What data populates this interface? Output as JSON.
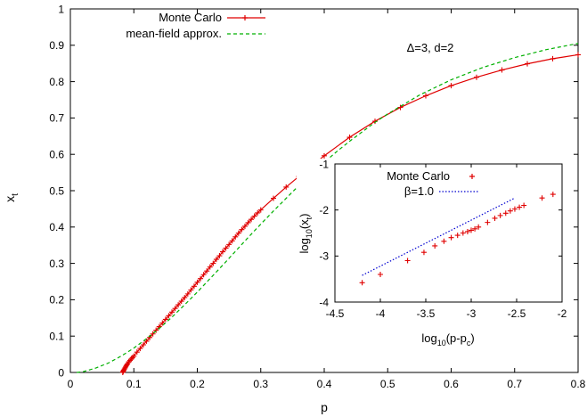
{
  "chart_data": [
    {
      "type": "line",
      "xlabel": "p",
      "ylabel": "x",
      "ylabel_sub": "t",
      "annotation": "Δ=3, d=2",
      "xlim": [
        0,
        0.8
      ],
      "ylim": [
        0,
        1
      ],
      "xticks": [
        "0",
        "0.1",
        "0.2",
        "0.3",
        "0.4",
        "0.5",
        "0.6",
        "0.7",
        "0.8"
      ],
      "yticks": [
        "0",
        "0.1",
        "0.2",
        "0.3",
        "0.4",
        "0.5",
        "0.6",
        "0.7",
        "0.8",
        "0.9",
        "1"
      ],
      "legend_position": "top-left",
      "series": [
        {
          "name": "Monte Carlo",
          "color": "#e00000",
          "style": "line-points",
          "x": [
            0.0825,
            0.083,
            0.0835,
            0.084,
            0.085,
            0.086,
            0.087,
            0.088,
            0.089,
            0.09,
            0.092,
            0.094,
            0.096,
            0.098,
            0.1,
            0.105,
            0.11,
            0.115,
            0.12,
            0.125,
            0.13,
            0.135,
            0.14,
            0.145,
            0.15,
            0.155,
            0.16,
            0.165,
            0.17,
            0.175,
            0.18,
            0.185,
            0.19,
            0.195,
            0.2,
            0.205,
            0.21,
            0.215,
            0.22,
            0.225,
            0.23,
            0.235,
            0.24,
            0.245,
            0.25,
            0.255,
            0.26,
            0.265,
            0.27,
            0.275,
            0.28,
            0.285,
            0.29,
            0.295,
            0.3,
            0.32,
            0.34,
            0.36,
            0.4,
            0.44,
            0.48,
            0.52,
            0.56,
            0.6,
            0.64,
            0.68,
            0.72,
            0.76,
            0.8
          ],
          "y": [
            0.0,
            0.002,
            0.004,
            0.006,
            0.009,
            0.012,
            0.015,
            0.018,
            0.021,
            0.024,
            0.029,
            0.033,
            0.037,
            0.041,
            0.045,
            0.056,
            0.066,
            0.076,
            0.086,
            0.096,
            0.106,
            0.116,
            0.126,
            0.136,
            0.146,
            0.156,
            0.166,
            0.176,
            0.186,
            0.196,
            0.206,
            0.216,
            0.227,
            0.237,
            0.248,
            0.258,
            0.269,
            0.279,
            0.29,
            0.3,
            0.311,
            0.321,
            0.332,
            0.342,
            0.352,
            0.362,
            0.373,
            0.383,
            0.393,
            0.402,
            0.412,
            0.421,
            0.43,
            0.439,
            0.447,
            0.479,
            0.51,
            0.539,
            0.596,
            0.647,
            0.691,
            0.729,
            0.761,
            0.789,
            0.812,
            0.832,
            0.849,
            0.863,
            0.874
          ]
        },
        {
          "name": "mean-field approx.",
          "color": "#00b000",
          "style": "dashed",
          "x": [
            0.01,
            0.02,
            0.04,
            0.06,
            0.08,
            0.1,
            0.12,
            0.14,
            0.16,
            0.18,
            0.2,
            0.22,
            0.24,
            0.26,
            0.28,
            0.3,
            0.32,
            0.34,
            0.36,
            0.38,
            0.4,
            0.42,
            0.44,
            0.46,
            0.48,
            0.5,
            0.55,
            0.6,
            0.65,
            0.7,
            0.75,
            0.8
          ],
          "y": [
            0.0,
            0.002,
            0.012,
            0.026,
            0.045,
            0.067,
            0.093,
            0.121,
            0.152,
            0.186,
            0.221,
            0.258,
            0.295,
            0.333,
            0.371,
            0.408,
            0.444,
            0.479,
            0.514,
            0.546,
            0.578,
            0.608,
            0.636,
            0.662,
            0.688,
            0.711,
            0.763,
            0.805,
            0.839,
            0.866,
            0.888,
            0.905
          ]
        }
      ]
    },
    {
      "type": "scatter",
      "xlabel": "log",
      "xlabel_sub": "10",
      "xlabel_arg": "(p-p",
      "xlabel_arg_sub": "c",
      "xlabel_close": ")",
      "ylabel": "log",
      "ylabel_sub": "10",
      "ylabel_arg": "(x",
      "ylabel_arg_sub": "t",
      "ylabel_close": ")",
      "xlim": [
        -4.5,
        -2
      ],
      "ylim": [
        -4,
        -1
      ],
      "xticks": [
        "-4.5",
        "-4",
        "-3.5",
        "-3",
        "-2.5",
        "-2"
      ],
      "yticks": [
        "-4",
        "-3",
        "-2",
        "-1"
      ],
      "legend_position": "top-left",
      "series": [
        {
          "name": "Monte Carlo",
          "color": "#e00000",
          "style": "points",
          "x": [
            -4.2,
            -4.0,
            -3.7,
            -3.52,
            -3.4,
            -3.3,
            -3.22,
            -3.15,
            -3.09,
            -3.04,
            -3.0,
            -2.96,
            -2.92,
            -2.82,
            -2.74,
            -2.68,
            -2.62,
            -2.57,
            -2.52,
            -2.47,
            -2.42,
            -2.22,
            -2.1
          ],
          "y": [
            -3.58,
            -3.4,
            -3.1,
            -2.92,
            -2.78,
            -2.68,
            -2.6,
            -2.55,
            -2.5,
            -2.47,
            -2.44,
            -2.41,
            -2.37,
            -2.27,
            -2.18,
            -2.12,
            -2.07,
            -2.02,
            -1.98,
            -1.94,
            -1.9,
            -1.74,
            -1.66
          ]
        },
        {
          "name": "β=1.0",
          "color": "#0000d0",
          "style": "dotted",
          "x": [
            -4.2,
            -2.52
          ],
          "y": [
            -3.42,
            -1.74
          ]
        }
      ]
    }
  ]
}
